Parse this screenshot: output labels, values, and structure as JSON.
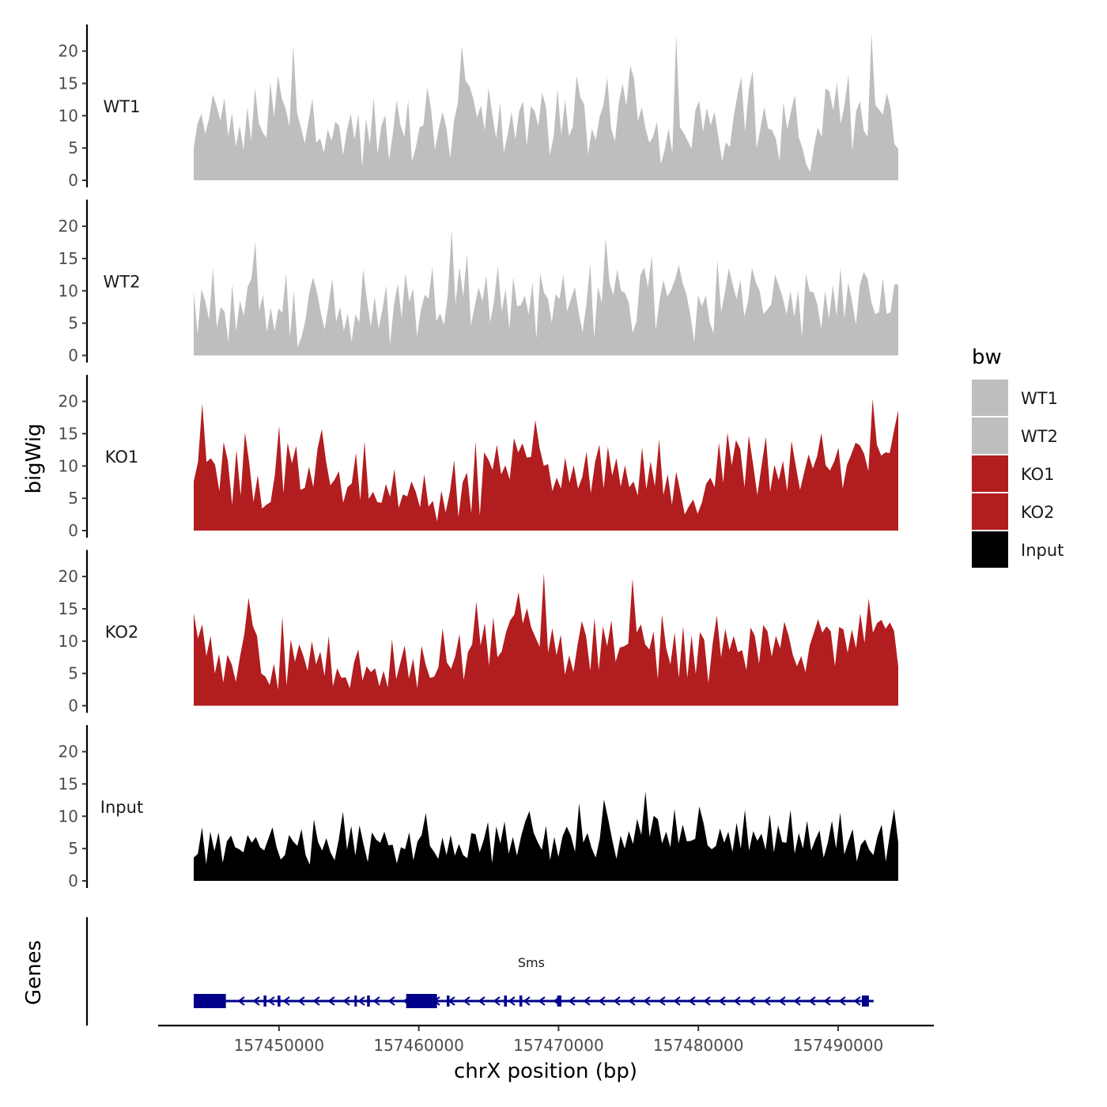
{
  "chart_data": {
    "type": "area",
    "description_title": "",
    "ylabel": "bigWig",
    "xlabel": "chrX position (bp)",
    "genes_label": "Genes",
    "legend_title": "bw",
    "x_range": [
      157443900,
      157494300
    ],
    "x_ticks": [
      157450000,
      157460000,
      157470000,
      157480000,
      157490000
    ],
    "x_tick_labels": [
      "157450000",
      "157460000",
      "157470000",
      "157480000",
      "157490000"
    ],
    "y_range": [
      0,
      24
    ],
    "y_ticks": [
      0,
      5,
      10,
      15,
      20
    ],
    "y_tick_labels": [
      "0",
      "5",
      "10",
      "15",
      "20"
    ],
    "series": [
      {
        "name": "WT1",
        "color": "#bebebe",
        "values": [
          5.0,
          8.8,
          10.3,
          7.2,
          9.5,
          13.3,
          11.4,
          9.2,
          12.7,
          6.8,
          10.4,
          5.2,
          8.5,
          4.7,
          11.3,
          6.1,
          14.3,
          8.9,
          7.4,
          6.6,
          15.1,
          9.8,
          16.2,
          12.7,
          11.1,
          8.3,
          20.9,
          10.4,
          8.2,
          5.7,
          9.3,
          12.6,
          5.8,
          6.5,
          4.3,
          7.9,
          6.1,
          9.1,
          8.4,
          3.9,
          7.7,
          10.3,
          6.3,
          10.3,
          2.1,
          9.6,
          5.5,
          12.9,
          4.1,
          8.4,
          10.1,
          3.1,
          7.2,
          12.4,
          8.5,
          6.7,
          12.4,
          2.9,
          5.1,
          8.2,
          8.5,
          14.4,
          11.0,
          4.7,
          8.0,
          10.6,
          8.0,
          3.4,
          9.3,
          12.0,
          20.8,
          15.4,
          14.6,
          12.7,
          9.7,
          11.6,
          7.7,
          14.3,
          10.1,
          6.4,
          12.0,
          4.3,
          7.1,
          10.6,
          6.3,
          10.7,
          12.2,
          5.3,
          11.4,
          10.8,
          8.4,
          13.6,
          11.3,
          3.9,
          6.8,
          14.2,
          7.0,
          12.5,
          6.8,
          8.3,
          16.2,
          12.8,
          11.7,
          4.0,
          8.0,
          6.2,
          9.8,
          11.6,
          15.9,
          8.1,
          6.0,
          11.9,
          15.0,
          11.5,
          17.8,
          15.7,
          9.1,
          11.3,
          8.0,
          5.8,
          6.8,
          9.1,
          2.5,
          4.7,
          8.0,
          4.2,
          22.6,
          8.2,
          7.3,
          6.1,
          4.9,
          10.8,
          12.3,
          7.5,
          11.2,
          8.5,
          10.6,
          6.8,
          3.0,
          5.9,
          5.1,
          9.8,
          13.2,
          16.0,
          7.5,
          14.1,
          17.0,
          4.9,
          8.0,
          11.4,
          8.0,
          7.8,
          6.5,
          3.0,
          12.1,
          7.9,
          10.7,
          13.2,
          6.7,
          4.9,
          2.4,
          1.3,
          5.2,
          8.2,
          6.7,
          14.2,
          13.8,
          10.8,
          15.1,
          8.7,
          11.8,
          16.4,
          4.5,
          10.7,
          12.2,
          7.7,
          6.7,
          22.8,
          11.7,
          10.9,
          10.2,
          13.5,
          11.2,
          5.6,
          4.9
        ]
      },
      {
        "name": "WT2",
        "color": "#bebebe",
        "values": [
          9.9,
          3.3,
          10.3,
          8.4,
          5.5,
          13.5,
          4.3,
          7.5,
          6.8,
          2.1,
          11.0,
          3.8,
          8.5,
          6.1,
          10.6,
          11.9,
          17.6,
          6.9,
          9.4,
          3.6,
          7.4,
          3.8,
          7.3,
          6.6,
          12.7,
          2.8,
          10.0,
          1.3,
          2.9,
          5.4,
          9.7,
          12.1,
          9.8,
          6.7,
          4.0,
          7.8,
          11.9,
          5.2,
          7.5,
          3.8,
          6.5,
          2.1,
          6.4,
          5.1,
          13.4,
          8.5,
          4.5,
          9.1,
          4.2,
          7.0,
          10.8,
          1.7,
          7.8,
          11.1,
          5.8,
          12.7,
          8.3,
          10.4,
          3.0,
          7.0,
          9.4,
          8.8,
          13.7,
          5.3,
          6.5,
          4.7,
          9.4,
          19.5,
          7.9,
          13.7,
          9.1,
          15.8,
          4.6,
          7.7,
          10.5,
          8.4,
          12.3,
          5.1,
          8.4,
          13.8,
          6.8,
          10.3,
          4.1,
          12.1,
          7.6,
          7.8,
          9.3,
          6.3,
          11.3,
          2.6,
          12.6,
          9.7,
          8.8,
          5.1,
          9.5,
          8.7,
          12.5,
          6.8,
          8.8,
          10.6,
          6.6,
          3.6,
          8.0,
          14.2,
          2.6,
          10.7,
          8.1,
          18.3,
          11.3,
          9.3,
          13.3,
          10.0,
          9.7,
          8.2,
          3.5,
          5.3,
          12.4,
          13.6,
          10.5,
          15.5,
          3.9,
          8.5,
          11.7,
          9.1,
          10.1,
          11.7,
          14.0,
          11.2,
          9.4,
          6.3,
          2.0,
          9.3,
          7.6,
          9.3,
          5.2,
          3.4,
          14.7,
          6.7,
          9.9,
          13.5,
          11.0,
          8.7,
          11.7,
          6.0,
          8.4,
          13.6,
          11.3,
          10.0,
          6.4,
          7.1,
          7.9,
          12.5,
          10.8,
          8.9,
          6.4,
          10.0,
          6.0,
          10.0,
          2.8,
          12.6,
          9.9,
          9.8,
          7.8,
          4.2,
          10.0,
          5.6,
          10.9,
          6.1,
          13.6,
          5.7,
          11.3,
          8.4,
          4.8,
          10.8,
          12.9,
          11.9,
          8.3,
          6.4,
          6.7,
          12.0,
          6.4,
          6.7,
          11.0,
          11.0
        ]
      },
      {
        "name": "KO1",
        "color": "#b21d1f",
        "values": [
          7.6,
          10.6,
          19.7,
          10.6,
          11.2,
          10.2,
          6.1,
          13.7,
          10.8,
          4.0,
          12.5,
          5.4,
          15.2,
          10.5,
          4.4,
          8.6,
          3.4,
          4.0,
          4.4,
          8.6,
          16.2,
          5.8,
          13.6,
          10.4,
          13.1,
          6.3,
          6.6,
          9.9,
          6.7,
          12.7,
          15.7,
          10.7,
          7.0,
          7.9,
          9.2,
          4.3,
          6.7,
          7.3,
          12.0,
          4.7,
          13.8,
          4.9,
          6.0,
          4.4,
          4.3,
          7.2,
          5.2,
          9.5,
          3.5,
          5.6,
          5.3,
          7.6,
          6.0,
          3.6,
          8.7,
          3.7,
          4.6,
          1.4,
          6.2,
          2.8,
          6.0,
          10.9,
          2.1,
          7.5,
          9.0,
          2.7,
          13.8,
          2.3,
          12.1,
          11.0,
          9.4,
          13.3,
          8.7,
          10.1,
          7.9,
          14.3,
          12.1,
          13.5,
          11.3,
          11.4,
          17.1,
          12.8,
          10.0,
          10.3,
          6.1,
          8.2,
          6.5,
          11.3,
          7.4,
          10.1,
          6.5,
          8.3,
          12.2,
          5.8,
          10.6,
          13.3,
          6.5,
          13.0,
          8.5,
          11.2,
          6.8,
          10.1,
          6.7,
          7.6,
          5.4,
          12.9,
          6.4,
          10.7,
          6.9,
          14.1,
          5.5,
          8.7,
          4.0,
          9.1,
          5.9,
          2.5,
          3.8,
          4.8,
          2.6,
          4.3,
          7.2,
          8.2,
          6.7,
          13.6,
          7.4,
          15.2,
          10.1,
          14.0,
          12.6,
          6.7,
          14.7,
          10.3,
          5.5,
          10.1,
          14.5,
          6.0,
          10.2,
          7.8,
          10.8,
          6.1,
          13.9,
          10.0,
          6.3,
          9.1,
          11.8,
          9.6,
          11.5,
          15.1,
          10.1,
          9.3,
          10.7,
          12.8,
          6.5,
          10.2,
          11.8,
          13.6,
          13.2,
          11.9,
          9.2,
          20.4,
          13.3,
          11.6,
          12.1,
          12.0,
          15.5,
          18.6
        ]
      },
      {
        "name": "KO2",
        "color": "#b21d1f",
        "values": [
          14.3,
          10.4,
          12.6,
          7.7,
          10.8,
          5.0,
          8.0,
          3.6,
          7.9,
          6.4,
          3.7,
          7.7,
          11.1,
          16.7,
          12.4,
          10.8,
          5.0,
          4.5,
          3.2,
          6.5,
          2.5,
          13.8,
          3.1,
          10.3,
          6.8,
          9.5,
          7.7,
          5.4,
          10.0,
          6.4,
          8.4,
          4.6,
          10.8,
          3.0,
          5.8,
          4.3,
          4.4,
          2.7,
          6.7,
          8.7,
          3.9,
          6.1,
          5.2,
          5.8,
          3.0,
          5.4,
          2.8,
          10.3,
          4.1,
          6.7,
          9.3,
          4.2,
          7.3,
          2.7,
          9.3,
          6.3,
          4.3,
          4.5,
          5.9,
          12.0,
          6.7,
          5.7,
          7.7,
          11.1,
          4.0,
          8.3,
          9.5,
          16.1,
          9.3,
          12.8,
          6.2,
          13.7,
          7.5,
          8.4,
          11.3,
          13.2,
          14.1,
          17.6,
          12.7,
          15.1,
          12.1,
          10.6,
          9.1,
          20.5,
          8.2,
          12.0,
          7.8,
          11.0,
          4.8,
          7.8,
          5.2,
          9.5,
          13.1,
          10.8,
          5.4,
          13.6,
          5.5,
          12.3,
          9.2,
          13.2,
          6.8,
          9.0,
          9.2,
          9.6,
          19.7,
          11.3,
          12.6,
          9.5,
          8.7,
          11.5,
          4.1,
          14.1,
          8.9,
          6.4,
          11.3,
          4.3,
          12.3,
          4.3,
          10.9,
          4.9,
          11.4,
          10.2,
          3.5,
          9.6,
          14.0,
          7.5,
          11.9,
          8.6,
          10.8,
          8.3,
          8.6,
          5.5,
          12.1,
          10.8,
          6.5,
          12.5,
          11.5,
          7.6,
          10.8,
          8.9,
          13.0,
          10.9,
          7.9,
          6.1,
          7.7,
          5.2,
          9.3,
          11.3,
          13.4,
          11.3,
          12.3,
          11.5,
          6.1,
          12.2,
          11.8,
          8.2,
          11.8,
          8.9,
          14.3,
          9.7,
          16.6,
          11.3,
          12.8,
          13.3,
          11.9,
          12.9,
          11.6,
          6.1
        ]
      },
      {
        "name": "Input",
        "color": "#000000",
        "values": [
          3.6,
          4.2,
          8.3,
          2.6,
          7.6,
          4.6,
          7.5,
          2.8,
          6.1,
          7.0,
          5.2,
          4.9,
          4.4,
          7.1,
          5.9,
          6.8,
          5.2,
          4.7,
          6.5,
          8.3,
          5.2,
          3.3,
          4.0,
          7.1,
          6.1,
          5.4,
          8.0,
          4.0,
          2.5,
          9.5,
          6.0,
          4.7,
          6.6,
          4.4,
          3.2,
          6.4,
          10.7,
          4.8,
          8.5,
          3.9,
          8.6,
          5.6,
          2.9,
          7.5,
          6.4,
          5.9,
          7.6,
          5.5,
          5.6,
          2.7,
          5.2,
          4.9,
          7.5,
          3.2,
          6.1,
          7.1,
          10.5,
          5.4,
          4.5,
          3.4,
          6.7,
          4.0,
          7.1,
          3.9,
          5.7,
          4.0,
          3.5,
          7.4,
          7.2,
          4.4,
          6.4,
          9.1,
          2.8,
          8.4,
          5.8,
          9.2,
          4.2,
          6.8,
          3.9,
          6.9,
          9.2,
          10.8,
          7.5,
          6.0,
          4.8,
          8.5,
          3.2,
          6.8,
          3.7,
          6.9,
          8.4,
          7.0,
          4.5,
          12.0,
          5.9,
          7.4,
          5.1,
          3.6,
          6.6,
          12.6,
          9.6,
          6.3,
          3.4,
          7.0,
          5.0,
          7.7,
          5.7,
          9.6,
          7.1,
          13.8,
          6.8,
          10.1,
          9.5,
          5.8,
          7.6,
          5.2,
          11.1,
          5.8,
          8.7,
          6.1,
          6.2,
          6.5,
          11.5,
          9.0,
          5.5,
          4.9,
          5.4,
          8.1,
          5.9,
          7.6,
          4.5,
          9.0,
          5.0,
          11.0,
          4.7,
          7.7,
          6.2,
          7.3,
          4.8,
          10.3,
          4.4,
          8.6,
          6.0,
          5.9,
          11.0,
          4.2,
          7.4,
          5.0,
          9.3,
          4.7,
          6.4,
          7.8,
          3.6,
          5.9,
          9.3,
          5.0,
          10.6,
          4.1,
          6.2,
          8.0,
          3.0,
          5.6,
          6.4,
          4.8,
          4.0,
          6.9,
          8.7,
          3.0,
          7.3,
          11.1,
          5.9
        ]
      }
    ],
    "gene": {
      "name": "Sms",
      "color": "#00008b",
      "strand": "-",
      "start": 157443900,
      "end": 157492200,
      "exons": [
        [
          157443900,
          157446200
        ],
        [
          157448900,
          157449100
        ],
        [
          157449900,
          157450100
        ],
        [
          157455400,
          157455500
        ],
        [
          157456300,
          157456500
        ],
        [
          157459100,
          157461300
        ],
        [
          157462000,
          157462200
        ],
        [
          157466100,
          157466300
        ],
        [
          157467200,
          157467400
        ],
        [
          157469900,
          157470200
        ],
        [
          157491700,
          157492200
        ]
      ]
    }
  }
}
